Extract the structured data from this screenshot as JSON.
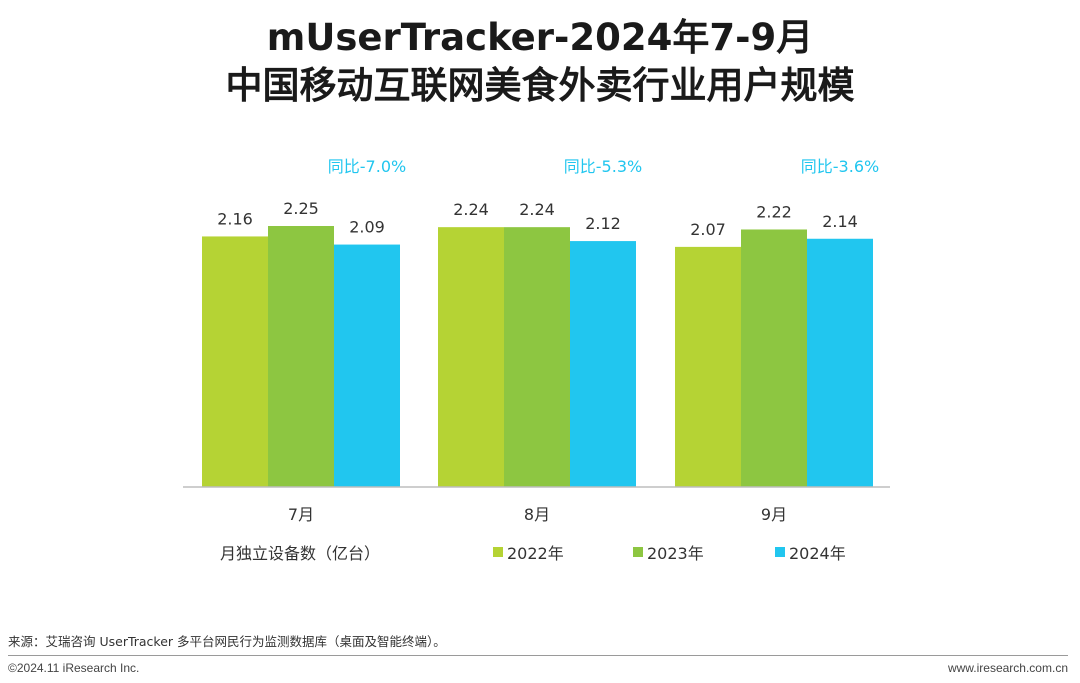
{
  "header": {
    "title_line1": "mUserTracker-2024年7-9月",
    "title_line2": "中国移动互联网美食外卖行业用户规模"
  },
  "chart_data": {
    "type": "bar",
    "categories": [
      "7月",
      "8月",
      "9月"
    ],
    "series": [
      {
        "name": "2022年",
        "values": [
          2.16,
          2.24,
          2.07
        ],
        "color": "#b5d334"
      },
      {
        "name": "2023年",
        "values": [
          2.25,
          2.24,
          2.22
        ],
        "color": "#8dc641"
      },
      {
        "name": "2024年",
        "values": [
          2.09,
          2.12,
          2.14
        ],
        "color": "#21c6ef"
      }
    ],
    "value_labels": [
      [
        "2.16",
        "2.24",
        "2.07"
      ],
      [
        "2.25",
        "2.24",
        "2.22"
      ],
      [
        "2.09",
        "2.12",
        "2.14"
      ]
    ],
    "yoy_labels": [
      "同比-7.0%",
      "同比-5.3%",
      "同比-3.6%"
    ],
    "yoy_color": "#21c6ef",
    "unit_label": "月独立设备数（亿台）",
    "ylim": [
      0,
      2.4
    ],
    "grid": false,
    "legend_position": "bottom"
  },
  "footer": {
    "source": "来源：艾瑞咨询 UserTracker 多平台网民行为监测数据库（桌面及智能终端）。",
    "copyright": "©2024.11 iResearch Inc.",
    "website": "www.iresearch.com.cn"
  }
}
